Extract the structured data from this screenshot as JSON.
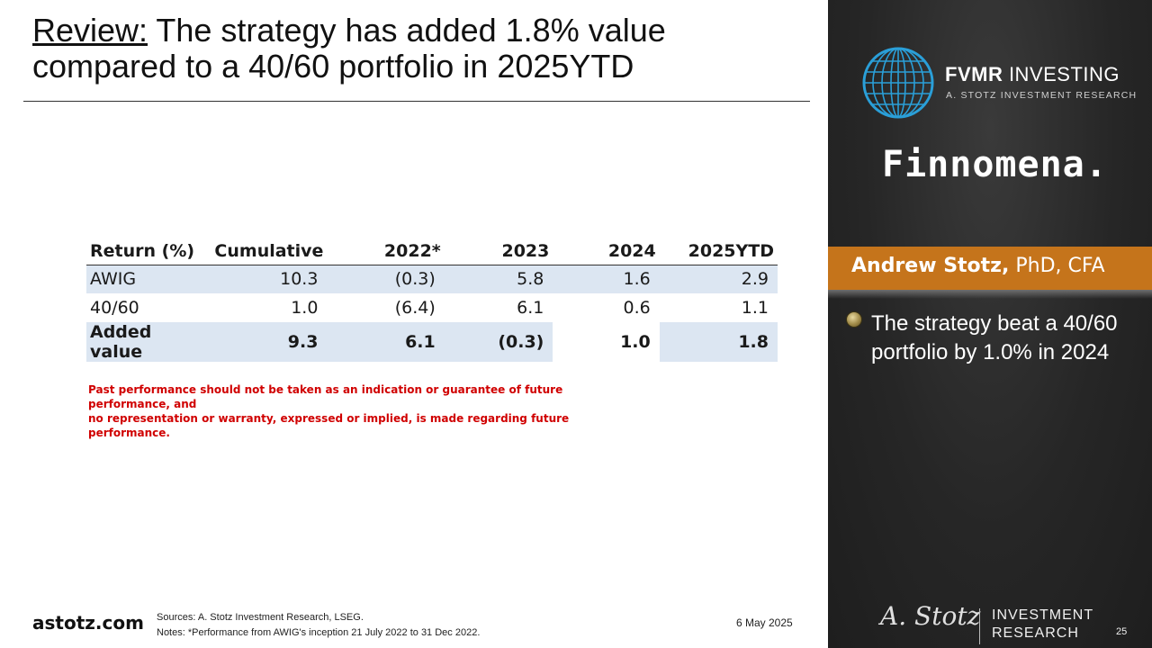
{
  "title": {
    "lead": "Review:",
    "rest": " The strategy has added 1.8% value compared to a 40/60 portfolio in 2025YTD"
  },
  "table": {
    "headers": [
      "Return (%)",
      "Cumulative",
      "2022*",
      "2023",
      "2024",
      "2025YTD"
    ],
    "rows": [
      {
        "label": "AWIG",
        "values": [
          "10.3",
          "(0.3)",
          "5.8",
          "1.6",
          "2.9"
        ]
      },
      {
        "label": "40/60",
        "values": [
          "1.0",
          "(6.4)",
          "6.1",
          "0.6",
          "1.1"
        ]
      },
      {
        "label": "Added value",
        "values": [
          "9.3",
          "6.1",
          "(0.3)",
          "1.0",
          "1.8"
        ]
      }
    ]
  },
  "disclaimer": {
    "line1": "Past performance should not be taken as an indication or guarantee of future performance, and",
    "line2": "no representation or warranty, expressed or implied, is made regarding future performance."
  },
  "footer": {
    "brand": "astotz.com",
    "sources": "Sources: A. Stotz Investment Research, LSEG.",
    "notes": "Notes: *Performance from AWIG's inception 21 July 2022 to 31 Dec 2022.",
    "date": "6 May 2025",
    "page": "25"
  },
  "panel": {
    "fvmr_bold": "FVMR",
    "fvmr_rest": " INVESTING",
    "fvmr_sub": "A. STOTZ INVESTMENT RESEARCH",
    "finnomena": "Finnomena.",
    "presenter_name": "Andrew Stotz,",
    "presenter_cred": " PhD, CFA",
    "bullet": "The strategy beat a 40/60 portfolio by 1.0% in 2024",
    "signature": "A. Stotz",
    "investment_line1": "INVESTMENT",
    "investment_line2": "RESEARCH"
  },
  "colors": {
    "accent_orange": "#c5741b",
    "table_shade": "#dce6f2",
    "disclaimer_red": "#d00000",
    "globe_blue": "#2a9fd8",
    "panel_dark": "#262626"
  }
}
